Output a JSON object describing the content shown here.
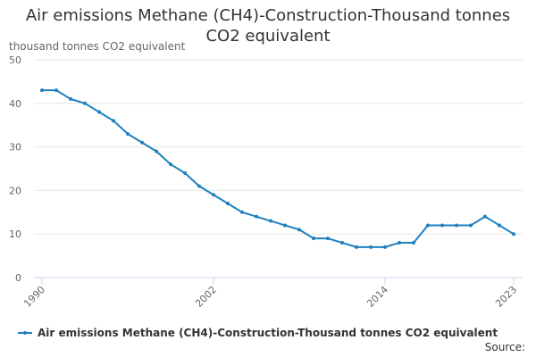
{
  "chart_data": {
    "type": "line",
    "title": "Air emissions Methane (CH4)-Construction-Thousand tonnes CO2 equivalent",
    "y_label": "thousand tonnes CO2 equivalent",
    "source": "Source:",
    "x": [
      1990,
      1991,
      1992,
      1993,
      1994,
      1995,
      1996,
      1997,
      1998,
      1999,
      2000,
      2001,
      2002,
      2003,
      2004,
      2005,
      2006,
      2007,
      2008,
      2009,
      2010,
      2011,
      2012,
      2013,
      2014,
      2015,
      2016,
      2017,
      2018,
      2019,
      2020,
      2021,
      2022,
      2023
    ],
    "series": [
      {
        "name": "Air emissions Methane (CH4)-Construction-Thousand tonnes CO2 equivalent",
        "color": "#1f7fbf",
        "values": [
          43,
          43,
          41,
          40,
          38,
          36,
          33,
          31,
          29,
          26,
          24,
          21,
          19,
          17,
          15,
          14,
          13,
          12,
          11,
          9,
          9,
          8,
          7,
          7,
          7,
          8,
          8,
          12,
          12,
          12,
          12,
          14,
          12,
          10
        ]
      }
    ],
    "xlim": [
      1990,
      2023
    ],
    "xticks": [
      1990,
      2002,
      2014,
      2023
    ],
    "ylim": [
      0,
      50
    ],
    "yticks": [
      0,
      10,
      20,
      30,
      40,
      50
    ],
    "grid": true
  }
}
